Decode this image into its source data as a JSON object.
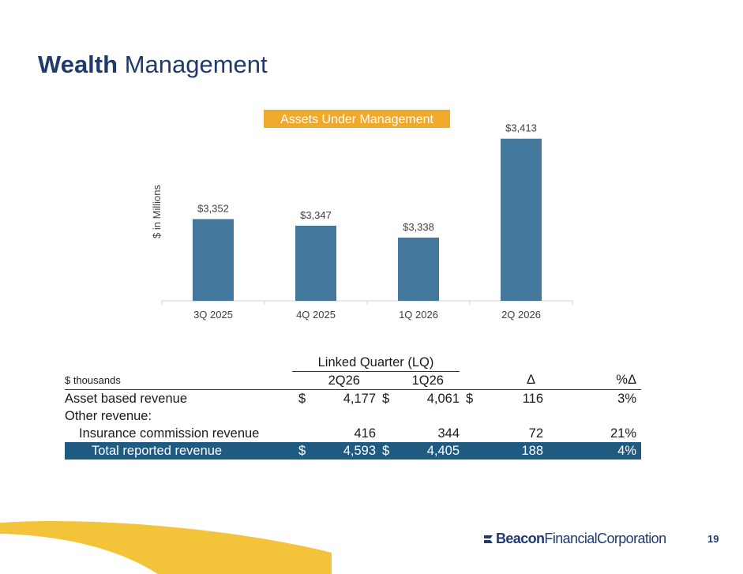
{
  "page": {
    "title_bold": "Wealth",
    "title_rest": "Management",
    "page_number": "19"
  },
  "chart_data": {
    "type": "bar",
    "title": "Assets Under Management",
    "ylabel": "$ in Millions",
    "xlabel": "",
    "categories": [
      "3Q 2025",
      "4Q 2025",
      "1Q 2026",
      "2Q 2026"
    ],
    "values": [
      3352,
      3347,
      3338,
      3413
    ],
    "data_labels": [
      "$3,352",
      "$3,347",
      "$3,338",
      "$3,413"
    ],
    "bar_color": "#44789d",
    "title_bg_color": "#f0a92a",
    "ylim": [
      3290,
      3420
    ],
    "grid": false
  },
  "table": {
    "group_header": "Linked Quarter (LQ)",
    "units": "$ thousands",
    "columns": [
      "2Q26",
      "1Q26",
      "Δ",
      "%Δ"
    ],
    "rows": [
      {
        "label": "Asset based revenue",
        "c1": "$",
        "v1": "4,177",
        "c2": "$",
        "v2": "4,061",
        "c3": "$",
        "v3": "116",
        "v4": "3%"
      },
      {
        "label": "Other revenue:",
        "c1": "",
        "v1": "",
        "c2": "",
        "v2": "",
        "c3": "",
        "v3": "",
        "v4": ""
      },
      {
        "label": "Insurance commission revenue",
        "c1": "",
        "v1": "416",
        "c2": "",
        "v2": "344",
        "c3": "",
        "v3": "72",
        "v4": "21%"
      }
    ],
    "total": {
      "label": "Total reported revenue",
      "c1": "$",
      "v1": "4,593",
      "c2": "$",
      "v2": "4,405",
      "c3": "",
      "v3": "188",
      "v4": "4%"
    },
    "total_color": "#1f5a80"
  },
  "brand": {
    "logo_bold": "Beacon",
    "logo_rest": "FinancialCorporation",
    "logo_color": "#1f3a6b",
    "swoosh_color": "#f3c33a"
  }
}
